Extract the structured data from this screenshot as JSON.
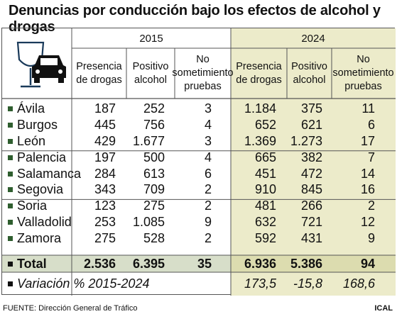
{
  "title": "Denuncias por conducción bajo los efectos de alcohol y drogas",
  "colors": {
    "highlight_2024": "#ecebca",
    "total_row": "#d7dec9",
    "total_row_2024": "#dcdcaf",
    "bullet": "#2f5e2f",
    "line": "#555555"
  },
  "icons": [
    "wine-glass-icon",
    "car-icon"
  ],
  "years": [
    "2015",
    "2024"
  ],
  "column_headers": [
    "Presencia de drogas",
    "Positivo alcohol",
    "No sometimiento pruebas"
  ],
  "rows": [
    {
      "name": "Ávila",
      "y2015": [
        "187",
        "252",
        "3"
      ],
      "y2024": [
        "1.184",
        "375",
        "11"
      ]
    },
    {
      "name": "Burgos",
      "y2015": [
        "445",
        "756",
        "4"
      ],
      "y2024": [
        "652",
        "621",
        "6"
      ]
    },
    {
      "name": "León",
      "y2015": [
        "429",
        "1.677",
        "3"
      ],
      "y2024": [
        "1.369",
        "1.273",
        "17"
      ]
    },
    {
      "name": "Palencia",
      "y2015": [
        "197",
        "500",
        "4"
      ],
      "y2024": [
        "665",
        "382",
        "7"
      ]
    },
    {
      "name": "Salamanca",
      "y2015": [
        "284",
        "613",
        "6"
      ],
      "y2024": [
        "451",
        "472",
        "14"
      ]
    },
    {
      "name": "Segovia",
      "y2015": [
        "343",
        "709",
        "2"
      ],
      "y2024": [
        "910",
        "845",
        "16"
      ]
    },
    {
      "name": "Soria",
      "y2015": [
        "123",
        "275",
        "2"
      ],
      "y2024": [
        "481",
        "266",
        "2"
      ]
    },
    {
      "name": "Valladolid",
      "y2015": [
        "253",
        "1.085",
        "9"
      ],
      "y2024": [
        "632",
        "721",
        "12"
      ]
    },
    {
      "name": "Zamora",
      "y2015": [
        "275",
        "528",
        "2"
      ],
      "y2024": [
        "592",
        "431",
        "9"
      ]
    }
  ],
  "total": {
    "name": "Total",
    "y2015": [
      "2.536",
      "6.395",
      "35"
    ],
    "y2024": [
      "6.936",
      "5.386",
      "94"
    ]
  },
  "variation": {
    "label": "Variación % 2015-2024",
    "values": [
      "173,5",
      "-15,8",
      "168,6"
    ]
  },
  "source": "FUENTE: Dirección General de Tráfico",
  "credit": "ICAL"
}
